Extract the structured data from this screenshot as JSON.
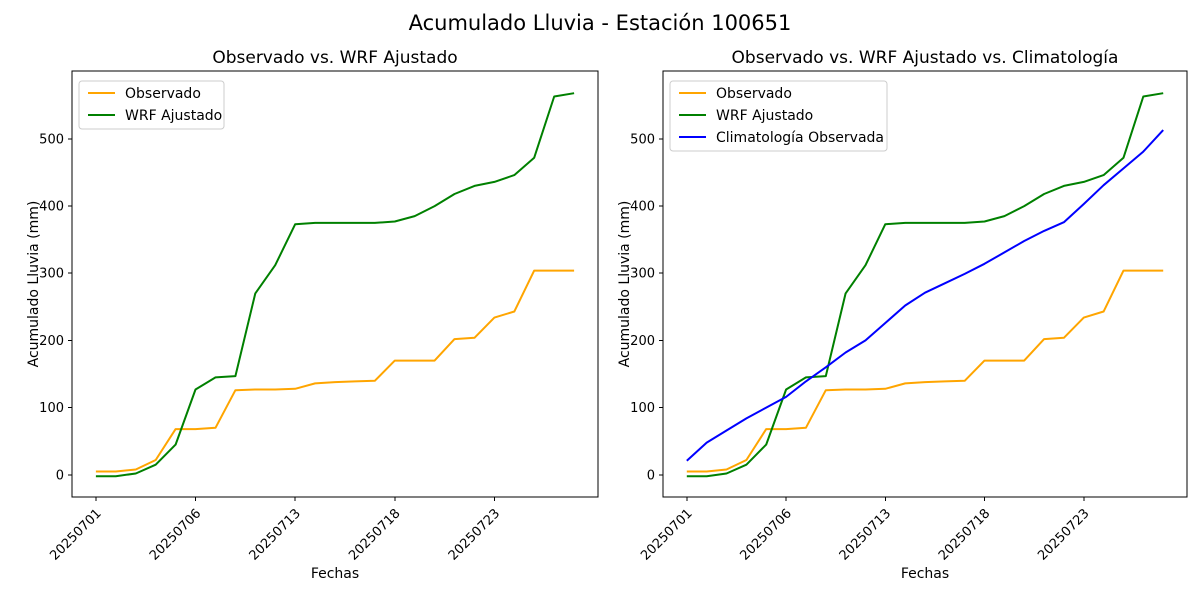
{
  "figure_title": "Acumulado Lluvia - Estación 100651",
  "background_color": "#ffffff",
  "chart_data": [
    {
      "type": "line",
      "title": "Observado vs. WRF Ajustado",
      "xlabel": "Fechas",
      "ylabel": "Acumulado Lluvia (mm)",
      "n_points": 25,
      "x_ticks": {
        "indices": [
          0,
          5,
          10,
          15,
          20
        ],
        "labels": [
          "20250701",
          "20250706",
          "20250713",
          "20250718",
          "20250723"
        ],
        "rotation_deg": 45
      },
      "y_ticks": [
        0,
        100,
        200,
        300,
        400,
        500
      ],
      "xlim": [
        -1.2,
        25.2
      ],
      "ylim": [
        -33,
        601
      ],
      "grid": false,
      "legend_position": "upper left",
      "series": [
        {
          "name": "Observado",
          "color": "#FFA500",
          "values": [
            5,
            5,
            8,
            22,
            68,
            68,
            70,
            126,
            127,
            127,
            128,
            136,
            138,
            139,
            140,
            170,
            170,
            170,
            202,
            204,
            234,
            243,
            304,
            304,
            304
          ]
        },
        {
          "name": "WRF Ajustado",
          "color": "#008000",
          "values": [
            -2,
            -2,
            2,
            15,
            45,
            127,
            145,
            147,
            270,
            312,
            373,
            375,
            375,
            375,
            375,
            377,
            385,
            400,
            418,
            430,
            436,
            446,
            472,
            563,
            568
          ]
        }
      ]
    },
    {
      "type": "line",
      "title": "Observado vs. WRF Ajustado vs. Climatología",
      "xlabel": "Fechas",
      "ylabel": "Acumulado Lluvia (mm)",
      "n_points": 25,
      "x_ticks": {
        "indices": [
          0,
          5,
          10,
          15,
          20
        ],
        "labels": [
          "20250701",
          "20250706",
          "20250713",
          "20250718",
          "20250723"
        ],
        "rotation_deg": 45
      },
      "y_ticks": [
        0,
        100,
        200,
        300,
        400,
        500
      ],
      "xlim": [
        -1.2,
        25.2
      ],
      "ylim": [
        -33,
        601
      ],
      "grid": false,
      "legend_position": "upper left",
      "series": [
        {
          "name": "Observado",
          "color": "#FFA500",
          "values": [
            5,
            5,
            8,
            22,
            68,
            68,
            70,
            126,
            127,
            127,
            128,
            136,
            138,
            139,
            140,
            170,
            170,
            170,
            202,
            204,
            234,
            243,
            304,
            304,
            304
          ]
        },
        {
          "name": "WRF Ajustado",
          "color": "#008000",
          "values": [
            -2,
            -2,
            2,
            15,
            45,
            127,
            145,
            147,
            270,
            312,
            373,
            375,
            375,
            375,
            375,
            377,
            385,
            400,
            418,
            430,
            436,
            446,
            472,
            563,
            568
          ]
        },
        {
          "name": "Climatología Observada",
          "color": "#0000FF",
          "values": [
            21,
            48,
            66,
            84,
            100,
            116,
            139,
            160,
            182,
            200,
            226,
            252,
            271,
            285,
            299,
            314,
            331,
            348,
            363,
            376,
            403,
            431,
            456,
            481,
            513
          ]
        }
      ]
    }
  ]
}
